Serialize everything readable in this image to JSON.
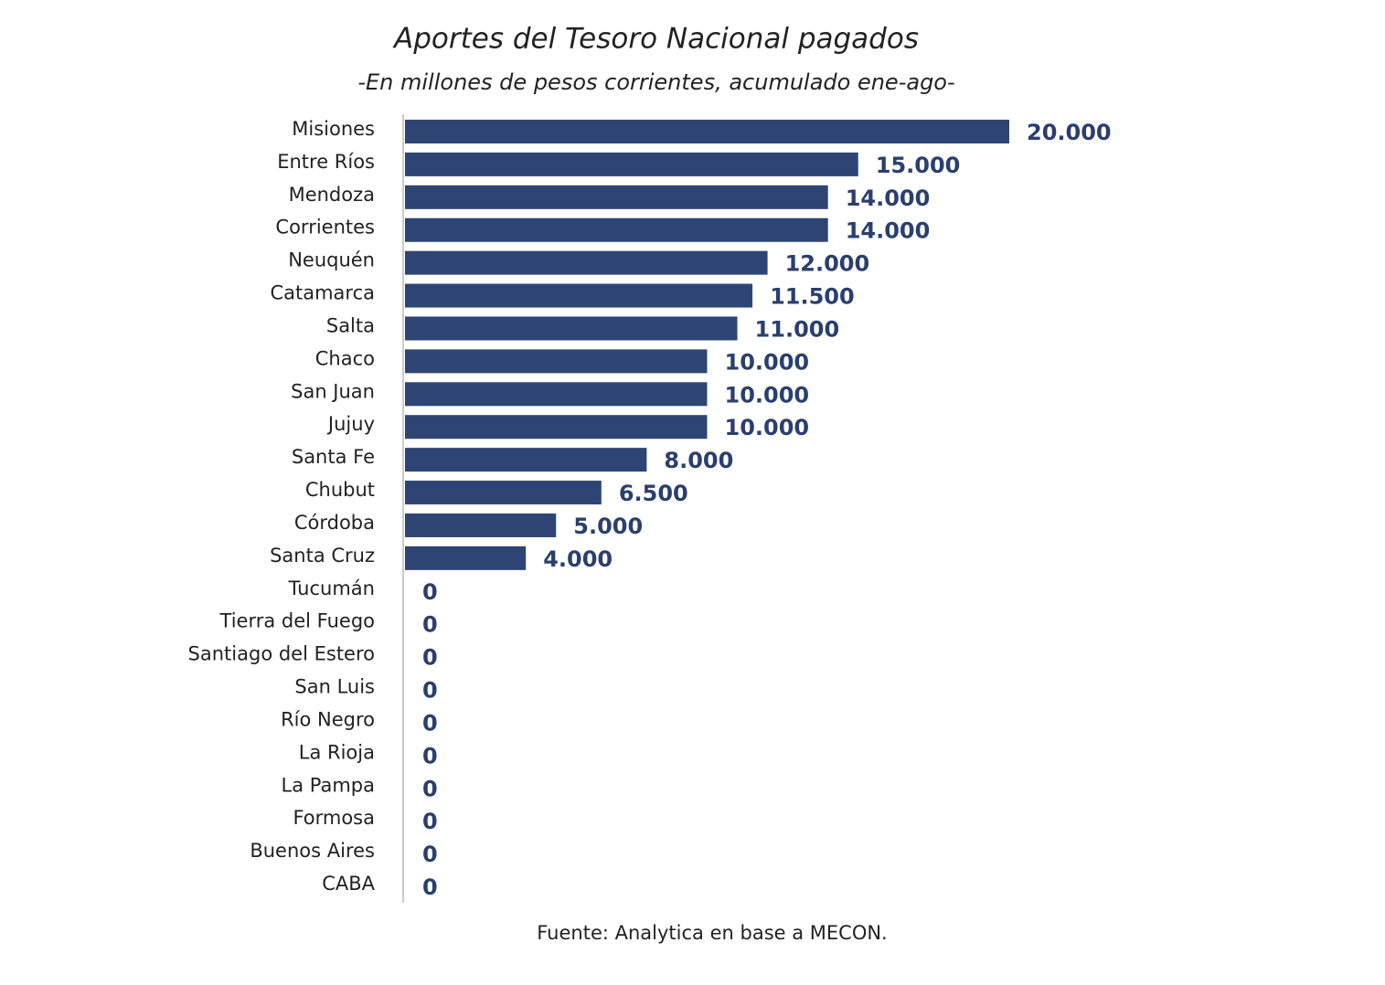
{
  "chart_data": {
    "type": "bar",
    "orientation": "horizontal",
    "title": "Aportes del Tesoro Nacional pagados",
    "subtitle": "-En millones de pesos corrientes, acumulado ene-ago-",
    "source": "Fuente: Analytica en base a MECON.",
    "color": "#2e4574",
    "categories": [
      "Misiones",
      "Entre Ríos",
      "Mendoza",
      "Corrientes",
      "Neuquén",
      "Catamarca",
      "Salta",
      "Chaco",
      "San Juan",
      "Jujuy",
      "Santa Fe",
      "Chubut",
      "Córdoba",
      "Santa Cruz",
      "Tucumán",
      "Tierra del Fuego",
      "Santiago del Estero",
      "San Luis",
      "Río Negro",
      "La Rioja",
      "La Pampa",
      "Formosa",
      "Buenos Aires",
      "CABA"
    ],
    "values": [
      20000,
      15000,
      14000,
      14000,
      12000,
      11500,
      11000,
      10000,
      10000,
      10000,
      8000,
      6500,
      5000,
      4000,
      0,
      0,
      0,
      0,
      0,
      0,
      0,
      0,
      0,
      0
    ],
    "value_labels": [
      "20.000",
      "15.000",
      "14.000",
      "14.000",
      "12.000",
      "11.500",
      "11.000",
      "10.000",
      "10.000",
      "10.000",
      "8.000",
      "6.500",
      "5.000",
      "4.000",
      "0",
      "0",
      "0",
      "0",
      "0",
      "0",
      "0",
      "0",
      "0",
      "0"
    ]
  }
}
